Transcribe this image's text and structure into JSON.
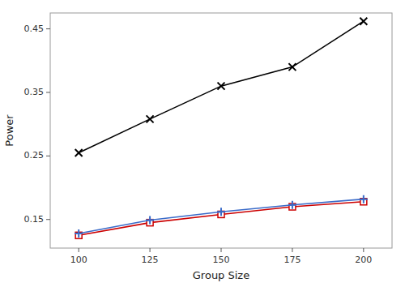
{
  "chart_data": {
    "type": "line",
    "xlabel": "Group Size",
    "ylabel": "Power",
    "x": [
      100,
      125,
      150,
      175,
      200
    ],
    "series": [
      {
        "color": "#000000",
        "marker": "x",
        "line_style": "solid",
        "values": [
          0.255,
          0.308,
          0.36,
          0.39,
          0.462
        ]
      },
      {
        "color": "#cc0000",
        "marker": "square",
        "line_style": "solid",
        "values": [
          0.125,
          0.145,
          0.158,
          0.17,
          0.178
        ]
      },
      {
        "color": "#3a6bc9",
        "marker": "plus",
        "line_style": "solid",
        "values": [
          0.128,
          0.149,
          0.162,
          0.173,
          0.182
        ]
      }
    ],
    "xlim": [
      90,
      210
    ],
    "xticks": [
      100,
      125,
      150,
      175,
      200
    ],
    "ylim": [
      0.105,
      0.475
    ],
    "yticks": [
      0.15,
      0.25,
      0.35,
      0.45
    ],
    "grid": false
  }
}
